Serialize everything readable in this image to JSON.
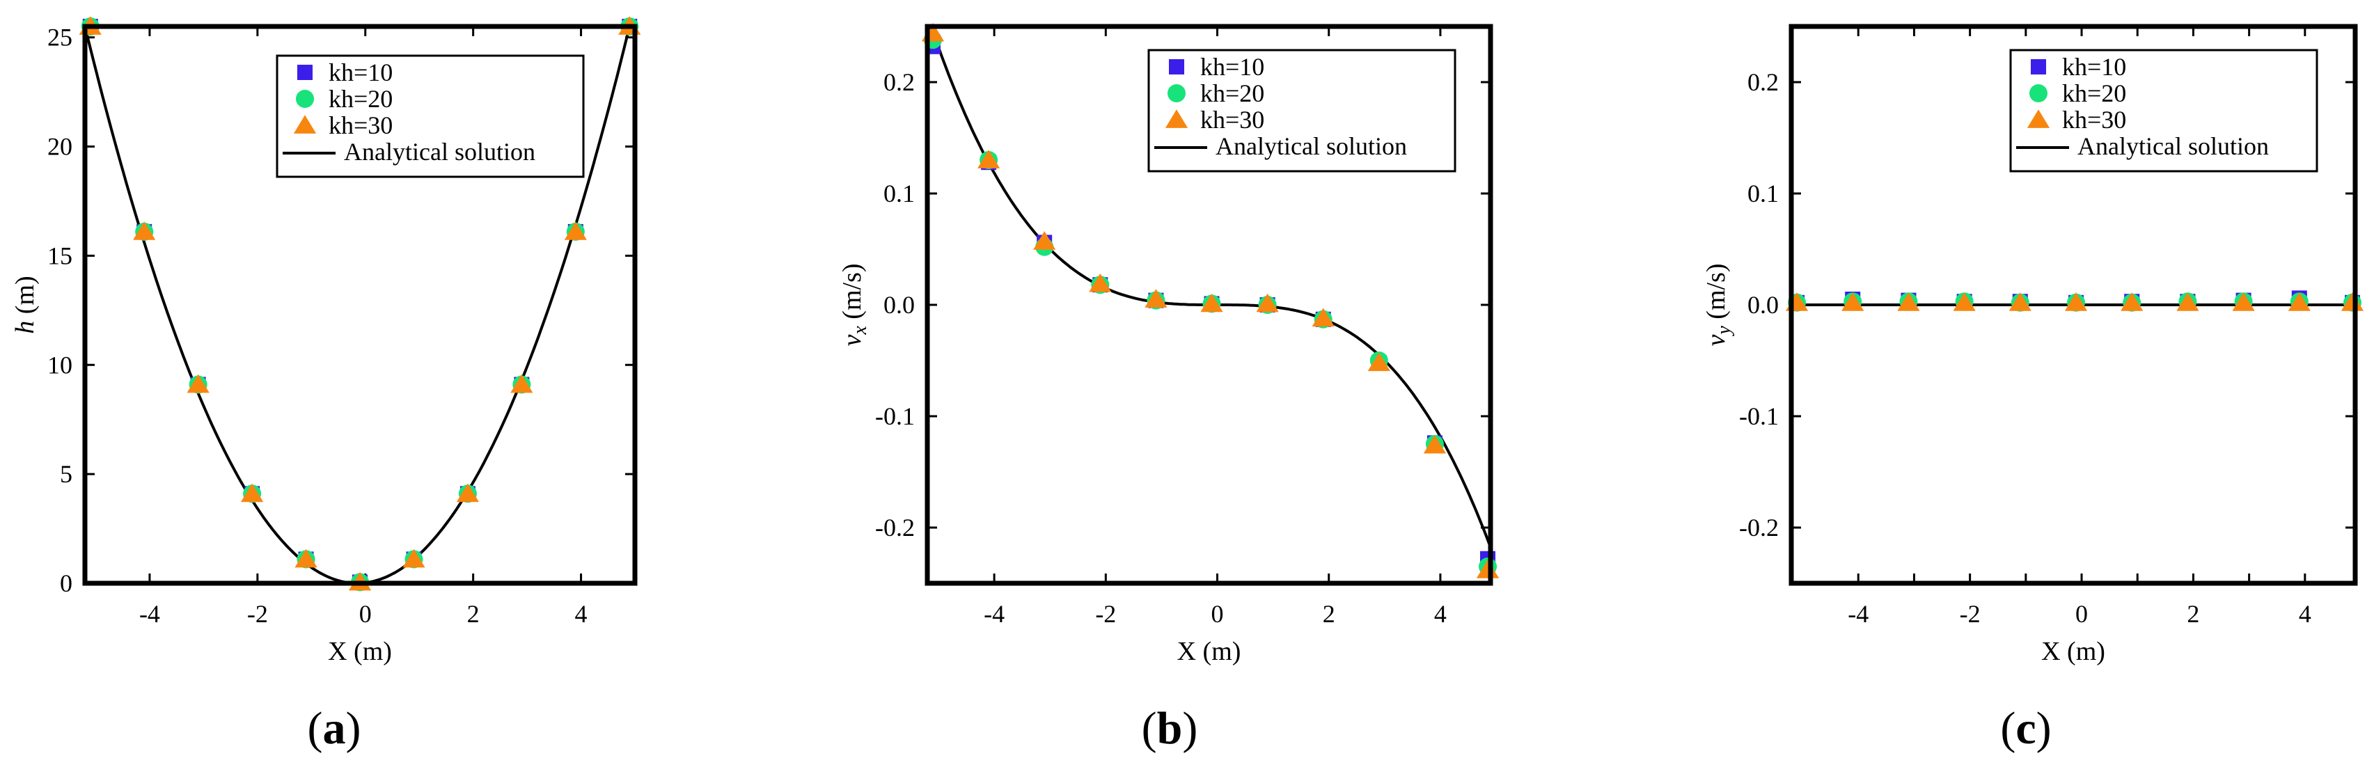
{
  "figure": {
    "colors": {
      "kh10": "#3b1eea",
      "kh20": "#18e37a",
      "kh30": "#f7860f",
      "analytical": "#000000",
      "frame": "#000000"
    }
  },
  "legend": {
    "entries": [
      {
        "label": "kh=10",
        "marker": "square",
        "color": "#3b1eea"
      },
      {
        "label": "kh=20",
        "marker": "circle",
        "color": "#18e37a"
      },
      {
        "label": "kh=30",
        "marker": "triangle",
        "color": "#f7860f"
      },
      {
        "label": "Analytical solution",
        "marker": "line",
        "color": "#000000"
      }
    ]
  },
  "chart_data": [
    {
      "id": "a",
      "type": "scatter",
      "panel_label": {
        "open": "(",
        "letter": "a",
        "close": ")"
      },
      "xlabel": "X (m)",
      "ylabel": {
        "main": "h",
        "unit": " (m)"
      },
      "xlim": [
        -5.2,
        5
      ],
      "ylim": [
        0,
        25.5
      ],
      "xticks": [
        -4,
        -2,
        0,
        2,
        4
      ],
      "xtick_labels": [
        "-4",
        "-2",
        "0",
        "2",
        "4"
      ],
      "yticks": [
        0,
        5,
        10,
        15,
        20,
        25
      ],
      "ytick_labels": [
        "0",
        "5",
        "10",
        "15",
        "20",
        "25"
      ],
      "legend_position": "top-right",
      "analytical": {
        "kind": "quadratic",
        "center": -0.15,
        "coef": 1.0
      },
      "series": [
        {
          "name": "kh=10",
          "x": [
            -5.1,
            -4.1,
            -3.1,
            -2.1,
            -1.1,
            -0.1,
            0.9,
            1.9,
            2.9,
            3.9,
            4.9
          ],
          "y": [
            25.5,
            16.1,
            9.1,
            4.1,
            1.1,
            0.05,
            1.1,
            4.1,
            9.1,
            16.1,
            25.5
          ]
        },
        {
          "name": "kh=20",
          "x": [
            -5.1,
            -4.1,
            -3.1,
            -2.1,
            -1.1,
            -0.1,
            0.9,
            1.9,
            2.9,
            3.9,
            4.9
          ],
          "y": [
            25.5,
            16.1,
            9.1,
            4.1,
            1.1,
            0.05,
            1.1,
            4.1,
            9.1,
            16.1,
            25.5
          ]
        },
        {
          "name": "kh=30",
          "x": [
            -5.1,
            -4.1,
            -3.1,
            -2.1,
            -1.1,
            -0.1,
            0.9,
            1.9,
            2.9,
            3.9,
            4.9
          ],
          "y": [
            25.5,
            16.1,
            9.1,
            4.1,
            1.1,
            0.05,
            1.1,
            4.1,
            9.1,
            16.1,
            25.5
          ]
        }
      ]
    },
    {
      "id": "b",
      "type": "scatter",
      "panel_label": {
        "open": "(",
        "letter": "b",
        "close": ")"
      },
      "xlabel": "X (m)",
      "ylabel": {
        "main": "v",
        "sub": "x",
        "unit": " (m/s)"
      },
      "xlim": [
        -5.2,
        4.9
      ],
      "ylim": [
        -0.25,
        0.25
      ],
      "xticks": [
        -4,
        -2,
        0,
        2,
        4
      ],
      "xtick_labels": [
        "-4",
        "-2",
        "0",
        "2",
        "4"
      ],
      "yticks": [
        0.2,
        0.1,
        0.0,
        -0.1,
        -0.2
      ],
      "ytick_labels": [
        "0.2",
        "0.1",
        "0.0",
        "-0.1",
        "-0.2"
      ],
      "legend_position": "top-right",
      "analytical": {
        "kind": "cubic",
        "center": 0,
        "coef": -0.00185
      },
      "series": [
        {
          "name": "kh=10",
          "x": [
            -5.1,
            -4.1,
            -3.1,
            -2.1,
            -1.1,
            -0.1,
            0.9,
            1.9,
            2.9,
            3.9,
            4.85
          ],
          "y": [
            0.232,
            0.128,
            0.056,
            0.018,
            0.004,
            0.001,
            0.0,
            -0.013,
            -0.052,
            -0.124,
            -0.228
          ]
        },
        {
          "name": "kh=20",
          "x": [
            -5.1,
            -4.1,
            -3.1,
            -2.1,
            -1.1,
            -0.1,
            0.9,
            1.9,
            2.9,
            3.9,
            4.85
          ],
          "y": [
            0.238,
            0.13,
            0.052,
            0.018,
            0.004,
            0.001,
            0.0,
            -0.013,
            -0.05,
            -0.125,
            -0.235
          ]
        },
        {
          "name": "kh=30",
          "x": [
            -5.1,
            -4.1,
            -3.1,
            -2.1,
            -1.1,
            -0.1,
            0.9,
            1.9,
            2.9,
            3.9,
            4.85
          ],
          "y": [
            0.244,
            0.13,
            0.057,
            0.019,
            0.005,
            0.001,
            0.001,
            -0.012,
            -0.052,
            -0.126,
            -0.238
          ]
        }
      ]
    },
    {
      "id": "c",
      "type": "scatter",
      "panel_label": {
        "open": "(",
        "letter": "c",
        "close": ")"
      },
      "xlabel": "X (m)",
      "ylabel": {
        "main": "v",
        "sub": "y",
        "unit": " (m/s)"
      },
      "xlim": [
        -5.2,
        4.9
      ],
      "ylim": [
        -0.25,
        0.25
      ],
      "xticks": [
        -4,
        -3,
        -2,
        -1,
        0,
        1,
        2,
        3,
        4
      ],
      "xtick_labels": [
        "-4",
        "",
        "-2",
        "",
        "0",
        "",
        "2",
        "",
        "4"
      ],
      "yticks": [
        0.2,
        0.1,
        0.0,
        -0.1,
        -0.2
      ],
      "ytick_labels": [
        "0.2",
        "0.1",
        "0.0",
        "-0.1",
        "-0.2"
      ],
      "legend_position": "top-right",
      "analytical": {
        "kind": "zero"
      },
      "series": [
        {
          "name": "kh=10",
          "x": [
            -5.1,
            -4.1,
            -3.1,
            -2.1,
            -1.1,
            -0.1,
            0.9,
            1.9,
            2.9,
            3.9,
            4.85
          ],
          "y": [
            0.002,
            0.005,
            0.004,
            0.003,
            0.003,
            0.002,
            0.003,
            0.003,
            0.004,
            0.006,
            0.002
          ]
        },
        {
          "name": "kh=20",
          "x": [
            -5.1,
            -4.1,
            -3.1,
            -2.1,
            -1.1,
            -0.1,
            0.9,
            1.9,
            2.9,
            3.9,
            4.85
          ],
          "y": [
            0.002,
            0.003,
            0.003,
            0.003,
            0.002,
            0.002,
            0.002,
            0.003,
            0.003,
            0.003,
            0.002
          ]
        },
        {
          "name": "kh=30",
          "x": [
            -5.1,
            -4.1,
            -3.1,
            -2.1,
            -1.1,
            -0.1,
            0.9,
            1.9,
            2.9,
            3.9,
            4.85
          ],
          "y": [
            0.002,
            0.002,
            0.002,
            0.002,
            0.002,
            0.002,
            0.002,
            0.002,
            0.002,
            0.002,
            0.002
          ]
        }
      ]
    }
  ]
}
